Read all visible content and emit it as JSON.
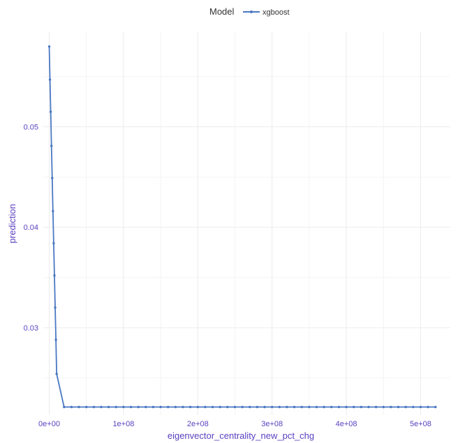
{
  "chart_data": {
    "type": "line",
    "xlabel": "eigenvector_centrality_new_pct_chg",
    "ylabel": "prediction",
    "xlim": [
      -8000000,
      540000000
    ],
    "ylim": [
      0.0213,
      0.0595
    ],
    "x_ticks": [
      0,
      100000000,
      200000000,
      300000000,
      400000000,
      500000000
    ],
    "x_tick_labels": [
      "0e+00",
      "1e+08",
      "2e+08",
      "3e+08",
      "4e+08",
      "5e+08"
    ],
    "y_ticks": [
      0.03,
      0.04,
      0.05
    ],
    "y_tick_labels": [
      "0.03",
      "0.04",
      "0.05"
    ],
    "grid": true,
    "legend": {
      "title": "Model",
      "placement": "top"
    },
    "colors": {
      "series": "#4a78c2",
      "axis_text": "#5a3fc0",
      "grid": "#ebebeb"
    },
    "series": [
      {
        "name": "xgboost",
        "x": [
          0,
          1000000,
          2000000,
          3000000,
          4000000,
          5000000,
          6000000,
          7000000,
          8000000,
          9000000,
          10000000,
          20000000,
          30000000,
          40000000,
          50000000,
          60000000,
          70000000,
          80000000,
          90000000,
          100000000,
          110000000,
          120000000,
          130000000,
          140000000,
          150000000,
          160000000,
          170000000,
          180000000,
          190000000,
          200000000,
          210000000,
          220000000,
          230000000,
          240000000,
          250000000,
          260000000,
          270000000,
          280000000,
          290000000,
          300000000,
          310000000,
          320000000,
          330000000,
          340000000,
          350000000,
          360000000,
          370000000,
          380000000,
          390000000,
          400000000,
          410000000,
          420000000,
          430000000,
          440000000,
          450000000,
          460000000,
          470000000,
          480000000,
          490000000,
          500000000,
          510000000,
          520000000
        ],
        "y": [
          0.058,
          0.0547,
          0.0515,
          0.0481,
          0.0449,
          0.0416,
          0.0384,
          0.0352,
          0.032,
          0.0288,
          0.0254,
          0.0221,
          0.0221,
          0.0221,
          0.0221,
          0.0221,
          0.0221,
          0.0221,
          0.0221,
          0.0221,
          0.0221,
          0.0221,
          0.0221,
          0.0221,
          0.0221,
          0.0221,
          0.0221,
          0.0221,
          0.0221,
          0.0221,
          0.0221,
          0.0221,
          0.0221,
          0.0221,
          0.0221,
          0.0221,
          0.0221,
          0.0221,
          0.0221,
          0.0221,
          0.0221,
          0.0221,
          0.0221,
          0.0221,
          0.0221,
          0.0221,
          0.0221,
          0.0221,
          0.0221,
          0.0221,
          0.0221,
          0.0221,
          0.0221,
          0.0221,
          0.0221,
          0.0221,
          0.0221,
          0.0221,
          0.0221,
          0.0221,
          0.0221,
          0.0221
        ]
      }
    ]
  }
}
